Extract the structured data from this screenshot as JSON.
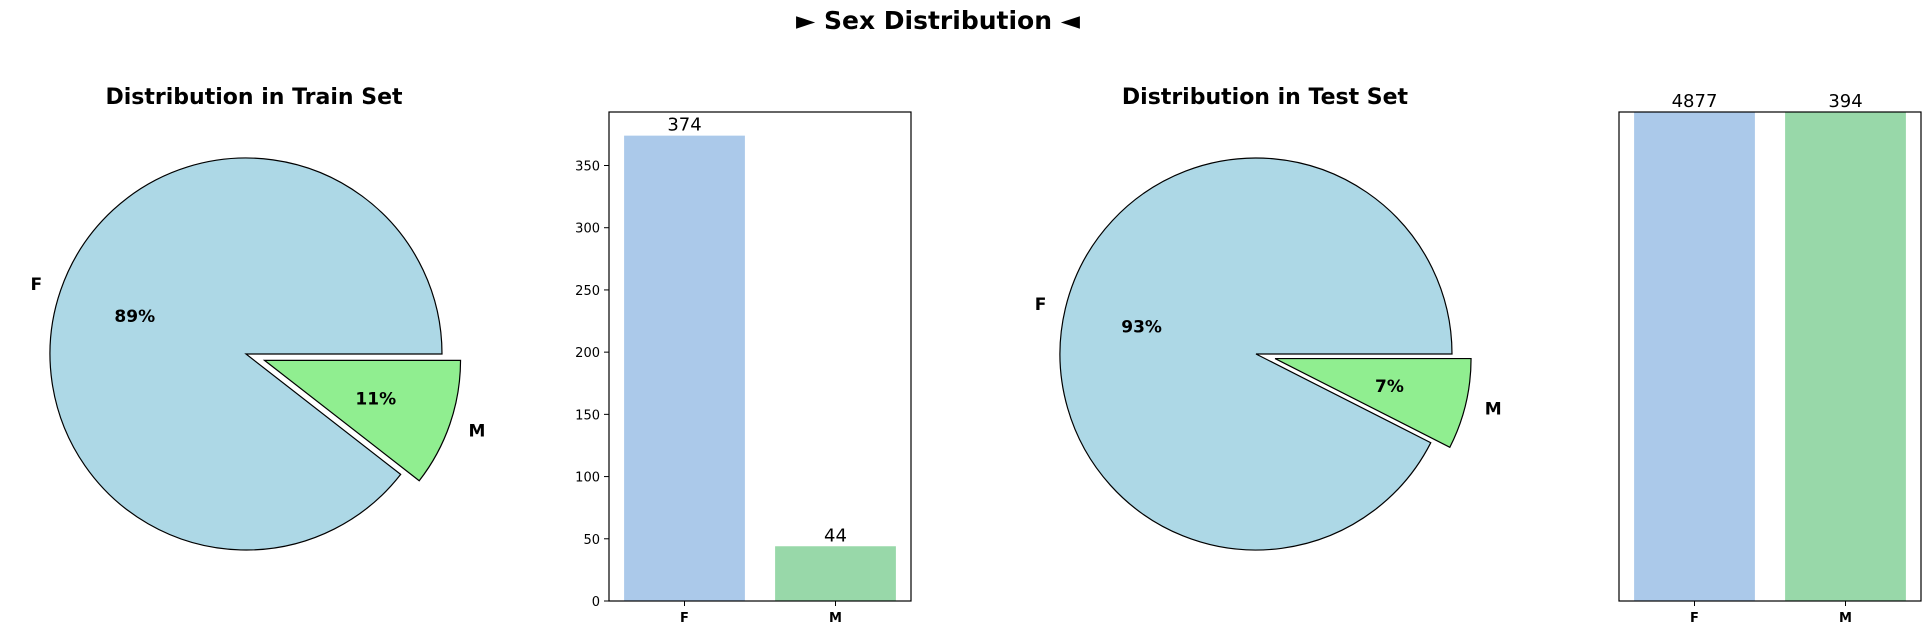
{
  "suptitle": "► Sex Distribution ◄",
  "chart_data": [
    {
      "type": "pie",
      "title": "Distribution in Train Set",
      "labels": [
        "F",
        "M"
      ],
      "values": [
        374,
        44
      ],
      "percent_labels": [
        "89%",
        "11%"
      ],
      "explode": [
        0,
        0.1
      ],
      "colors": [
        "#add8e6",
        "#90ee90"
      ]
    },
    {
      "type": "bar",
      "categories": [
        "F",
        "M"
      ],
      "values": [
        374,
        44
      ],
      "data_labels": [
        "374",
        "44"
      ],
      "ylim": [
        0,
        393
      ],
      "yticks": [
        0,
        50,
        100,
        150,
        200,
        250,
        300,
        350
      ],
      "colors": [
        "#abc9ea",
        "#98d8a9"
      ]
    },
    {
      "type": "pie",
      "title": "Distribution in Test Set",
      "labels": [
        "F",
        "M"
      ],
      "values": [
        4877,
        394
      ],
      "percent_labels": [
        "93%",
        "7%"
      ],
      "explode": [
        0,
        0.1
      ],
      "colors": [
        "#add8e6",
        "#90ee90"
      ]
    },
    {
      "type": "bar",
      "categories": [
        "F",
        "M"
      ],
      "values": [
        4877,
        394
      ],
      "data_labels": [
        "4877",
        "394"
      ],
      "ylim": [
        0,
        393
      ],
      "yticks": [],
      "colors": [
        "#abc9ea",
        "#98d8a9"
      ]
    }
  ]
}
